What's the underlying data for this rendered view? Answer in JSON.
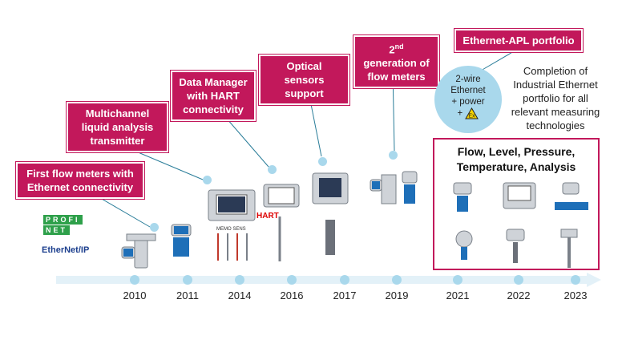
{
  "callouts": {
    "c2010": "First flow meters with Ethernet connectivity",
    "c2011": "Multichannel liquid analysis transmitter",
    "c2014": "Data Manager with HART connectivity",
    "c2016": "Optical sensors support",
    "c2019_sup": "nd",
    "c2019_num": "2",
    "c2019_rest": "generation of flow meters",
    "c2021": "Ethernet-APL portfolio"
  },
  "apl_bubble": {
    "line1": "2-wire",
    "line2": "Ethernet",
    "line3": "+ power",
    "line4": "+",
    "ex_symbol": "Ex"
  },
  "completion_text": "Completion of Industrial Ethernet portfolio for all relevant measuring technologies",
  "box_title": "Flow, Level, Pressure, Temperature, Analysis",
  "logos": {
    "profinet_top": "PROFI",
    "profinet_bottom": "NET",
    "ethernetip": "EtherNet/IP",
    "hart": "HART",
    "memosens": "MEMO SENS"
  },
  "years": [
    "2010",
    "2011",
    "2014",
    "2016",
    "2017",
    "2019",
    "2021",
    "2022",
    "2023"
  ],
  "colors": {
    "accent": "#c2185b",
    "timeline": "#a9d8ec",
    "device_blue": "#1e6fb8"
  }
}
